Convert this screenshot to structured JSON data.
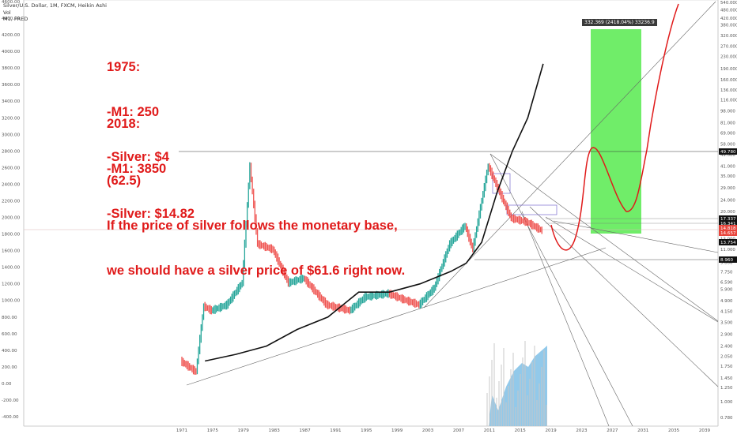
{
  "header": {
    "line1": "Silver/U.S. Dollar, 1M, FXCM, Heikin Ashi",
    "line2": "Vol",
    "line3": "M1, FRED"
  },
  "annotation": {
    "block1": [
      "1975:",
      "-M1: 250",
      "-Silver: $4"
    ],
    "block2": [
      "2018:",
      "-M1: 3850",
      "-Silver: $14.82"
    ],
    "block3": [
      "(62.5)",
      "If the price of silver follows the monetary base,",
      "we should have a silver price of $61.6 right now."
    ]
  },
  "measure_label": "332.369 (2418.04%) 33236.9",
  "chart_data": {
    "type": "line",
    "left_axis": {
      "ticks": [
        "4600.00",
        "4400.00",
        "4200.00",
        "4000.00",
        "3800.00",
        "3600.00",
        "3400.00",
        "3200.00",
        "3000.00",
        "2800.00",
        "2600.00",
        "2400.00",
        "2200.00",
        "2000.00",
        "1800.00",
        "1600.00",
        "1400.00",
        "1200.00",
        "1000.00",
        "800.00",
        "600.00",
        "400.00",
        "200.00",
        "0.00",
        "-200.00",
        "-400.00"
      ]
    },
    "right_axis": {
      "scale": "log",
      "ticks": [
        "540.000",
        "480.000",
        "420.000",
        "380.000",
        "320.000",
        "270.000",
        "230.000",
        "190.000",
        "160.000",
        "136.000",
        "116.000",
        "98.000",
        "81.000",
        "69.000",
        "58.000",
        "49.000",
        "41.000",
        "35.000",
        "29.000",
        "24.000",
        "20.000",
        "17.000",
        "13.000",
        "11.000",
        "9.000",
        "7.750",
        "6.590",
        "5.900",
        "4.900",
        "4.150",
        "3.500",
        "2.900",
        "2.400",
        "2.050",
        "1.750",
        "1.450",
        "1.250",
        "1.000",
        "0.780"
      ]
    },
    "x_axis": {
      "ticks": [
        "1971",
        "1975",
        "1979",
        "1983",
        "1987",
        "1991",
        "1995",
        "1999",
        "2003",
        "2007",
        "2011",
        "2015",
        "2019",
        "2023",
        "2027",
        "2031",
        "2035",
        "2039"
      ]
    },
    "price_labels": [
      {
        "value": "49.780",
        "color": "#111111"
      },
      {
        "value": "17.337",
        "color": "#111111"
      },
      {
        "value": "16.341",
        "color": "#111111"
      },
      {
        "value": "14.818",
        "color": "#e8453c"
      },
      {
        "value": "14.657",
        "color": "#e8453c"
      },
      {
        "value": "13.754",
        "color": "#111111"
      },
      {
        "value": "8.960",
        "color": "#111111"
      }
    ],
    "series": [
      {
        "name": "Silver/U.S. Dollar",
        "color_up": "#26a69a",
        "color_down": "#ef5350",
        "x": [
          1971,
          1973,
          1974,
          1975,
          1977,
          1979,
          1980,
          1981,
          1983,
          1985,
          1987,
          1990,
          1993,
          1995,
          1998,
          2000,
          2002,
          2004,
          2006,
          2008,
          2009,
          2011,
          2012,
          2014,
          2016,
          2018
        ],
        "y": [
          1.9,
          1.6,
          4.5,
          4.2,
          4.6,
          6.5,
          41,
          12,
          11,
          6.5,
          7,
          4.6,
          4.2,
          5.2,
          5.5,
          5.0,
          4.6,
          6,
          12,
          16,
          11,
          41,
          31,
          18,
          17,
          14.8
        ]
      },
      {
        "name": "M1",
        "color": "#111111",
        "x": [
          1974,
          1978,
          1982,
          1986,
          1990,
          1994,
          1998,
          2002,
          2006,
          2008,
          2010,
          2012,
          2014,
          2016,
          2018
        ],
        "y": [
          270,
          350,
          450,
          650,
          800,
          1100,
          1100,
          1200,
          1350,
          1450,
          1700,
          2300,
          2800,
          3200,
          3850
        ]
      }
    ],
    "projection": {
      "color": "#e01a1a"
    }
  },
  "colors": {
    "annotation": "#e01a1a",
    "green_zone": "#33e62a",
    "volume": "#7fbfe6"
  }
}
